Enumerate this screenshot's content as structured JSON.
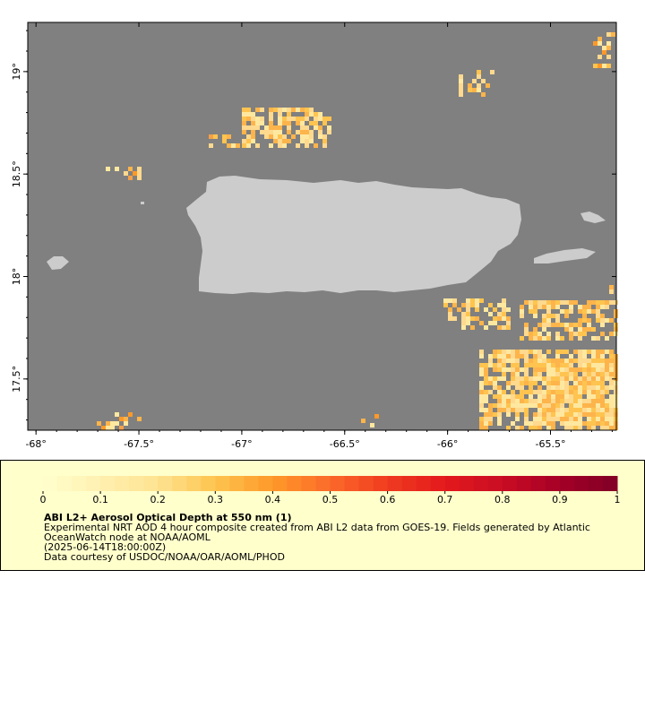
{
  "map": {
    "lon_ticks": [
      {
        "lon": -68,
        "label": "-68°"
      },
      {
        "lon": -67.5,
        "label": "-67.5°"
      },
      {
        "lon": -67,
        "label": "-67°"
      },
      {
        "lon": -66.5,
        "label": "-66.5°"
      },
      {
        "lon": -66,
        "label": "-66°"
      },
      {
        "lon": -65.5,
        "label": "-65.5°"
      }
    ],
    "lat_ticks": [
      {
        "lat": 19,
        "label": "19°"
      },
      {
        "lat": 18.5,
        "label": "18.5°"
      },
      {
        "lat": 18,
        "label": "18°"
      },
      {
        "lat": 17.5,
        "label": "17.5°"
      }
    ],
    "extent": {
      "lon_min": -68.04,
      "lon_max": -65.18,
      "lat_min": 17.25,
      "lat_max": 19.24
    },
    "colors": {
      "ocean": "#808080",
      "land": "#cccccc",
      "frame": "#000000"
    }
  },
  "legend": {
    "tick_labels": [
      "0",
      "0.1",
      "0.2",
      "0.3",
      "0.4",
      "0.5",
      "0.6",
      "0.7",
      "0.8",
      "0.9",
      "1"
    ],
    "title": "ABI L2+ Aerosol Optical Depth at 550 nm (1)",
    "description": "Experimental NRT AOD 4 hour composite created from ABI L2 data from GOES-19. Fields generated by Atlantic OceanWatch node at NOAA/AOML",
    "time": "(2025-06-14T18:00:00Z)",
    "credit": "Data courtesy of USDOC/NOAA/OAR/AOML/PHOD",
    "scale_colors": [
      "#ffffcc",
      "#fff0b0",
      "#fee391",
      "#fec44f",
      "#fe9929",
      "#fb6a2a",
      "#f03b20",
      "#e31a1c",
      "#c90d24",
      "#a50026",
      "#800026"
    ]
  }
}
